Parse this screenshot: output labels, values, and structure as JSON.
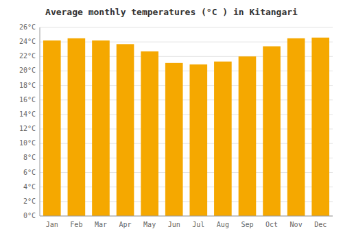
{
  "chart_data": {
    "type": "bar",
    "title": "Average monthly temperatures (°C ) in Kitangari",
    "categories": [
      "Jan",
      "Feb",
      "Mar",
      "Apr",
      "May",
      "Jun",
      "Jul",
      "Aug",
      "Sep",
      "Oct",
      "Nov",
      "Dec"
    ],
    "values": [
      24.2,
      24.5,
      24.2,
      23.7,
      22.7,
      21.1,
      20.9,
      21.3,
      22.0,
      23.4,
      24.5,
      24.6
    ],
    "color": "#F5A800",
    "ylim": [
      0,
      26
    ],
    "yticks": [
      {
        "value": 0,
        "label": "0°C"
      },
      {
        "value": 2,
        "label": "2°C"
      },
      {
        "value": 4,
        "label": "4°C"
      },
      {
        "value": 6,
        "label": "6°C"
      },
      {
        "value": 8,
        "label": "8°C"
      },
      {
        "value": 10,
        "label": "10°C"
      },
      {
        "value": 12,
        "label": "12°C"
      },
      {
        "value": 14,
        "label": "14°C"
      },
      {
        "value": 16,
        "label": "16°C"
      },
      {
        "value": 18,
        "label": "18°C"
      },
      {
        "value": 20,
        "label": "20°C"
      },
      {
        "value": 22,
        "label": "22°C"
      },
      {
        "value": 24,
        "label": "24°C"
      },
      {
        "value": 26,
        "label": "26°C"
      }
    ],
    "grid": true
  }
}
